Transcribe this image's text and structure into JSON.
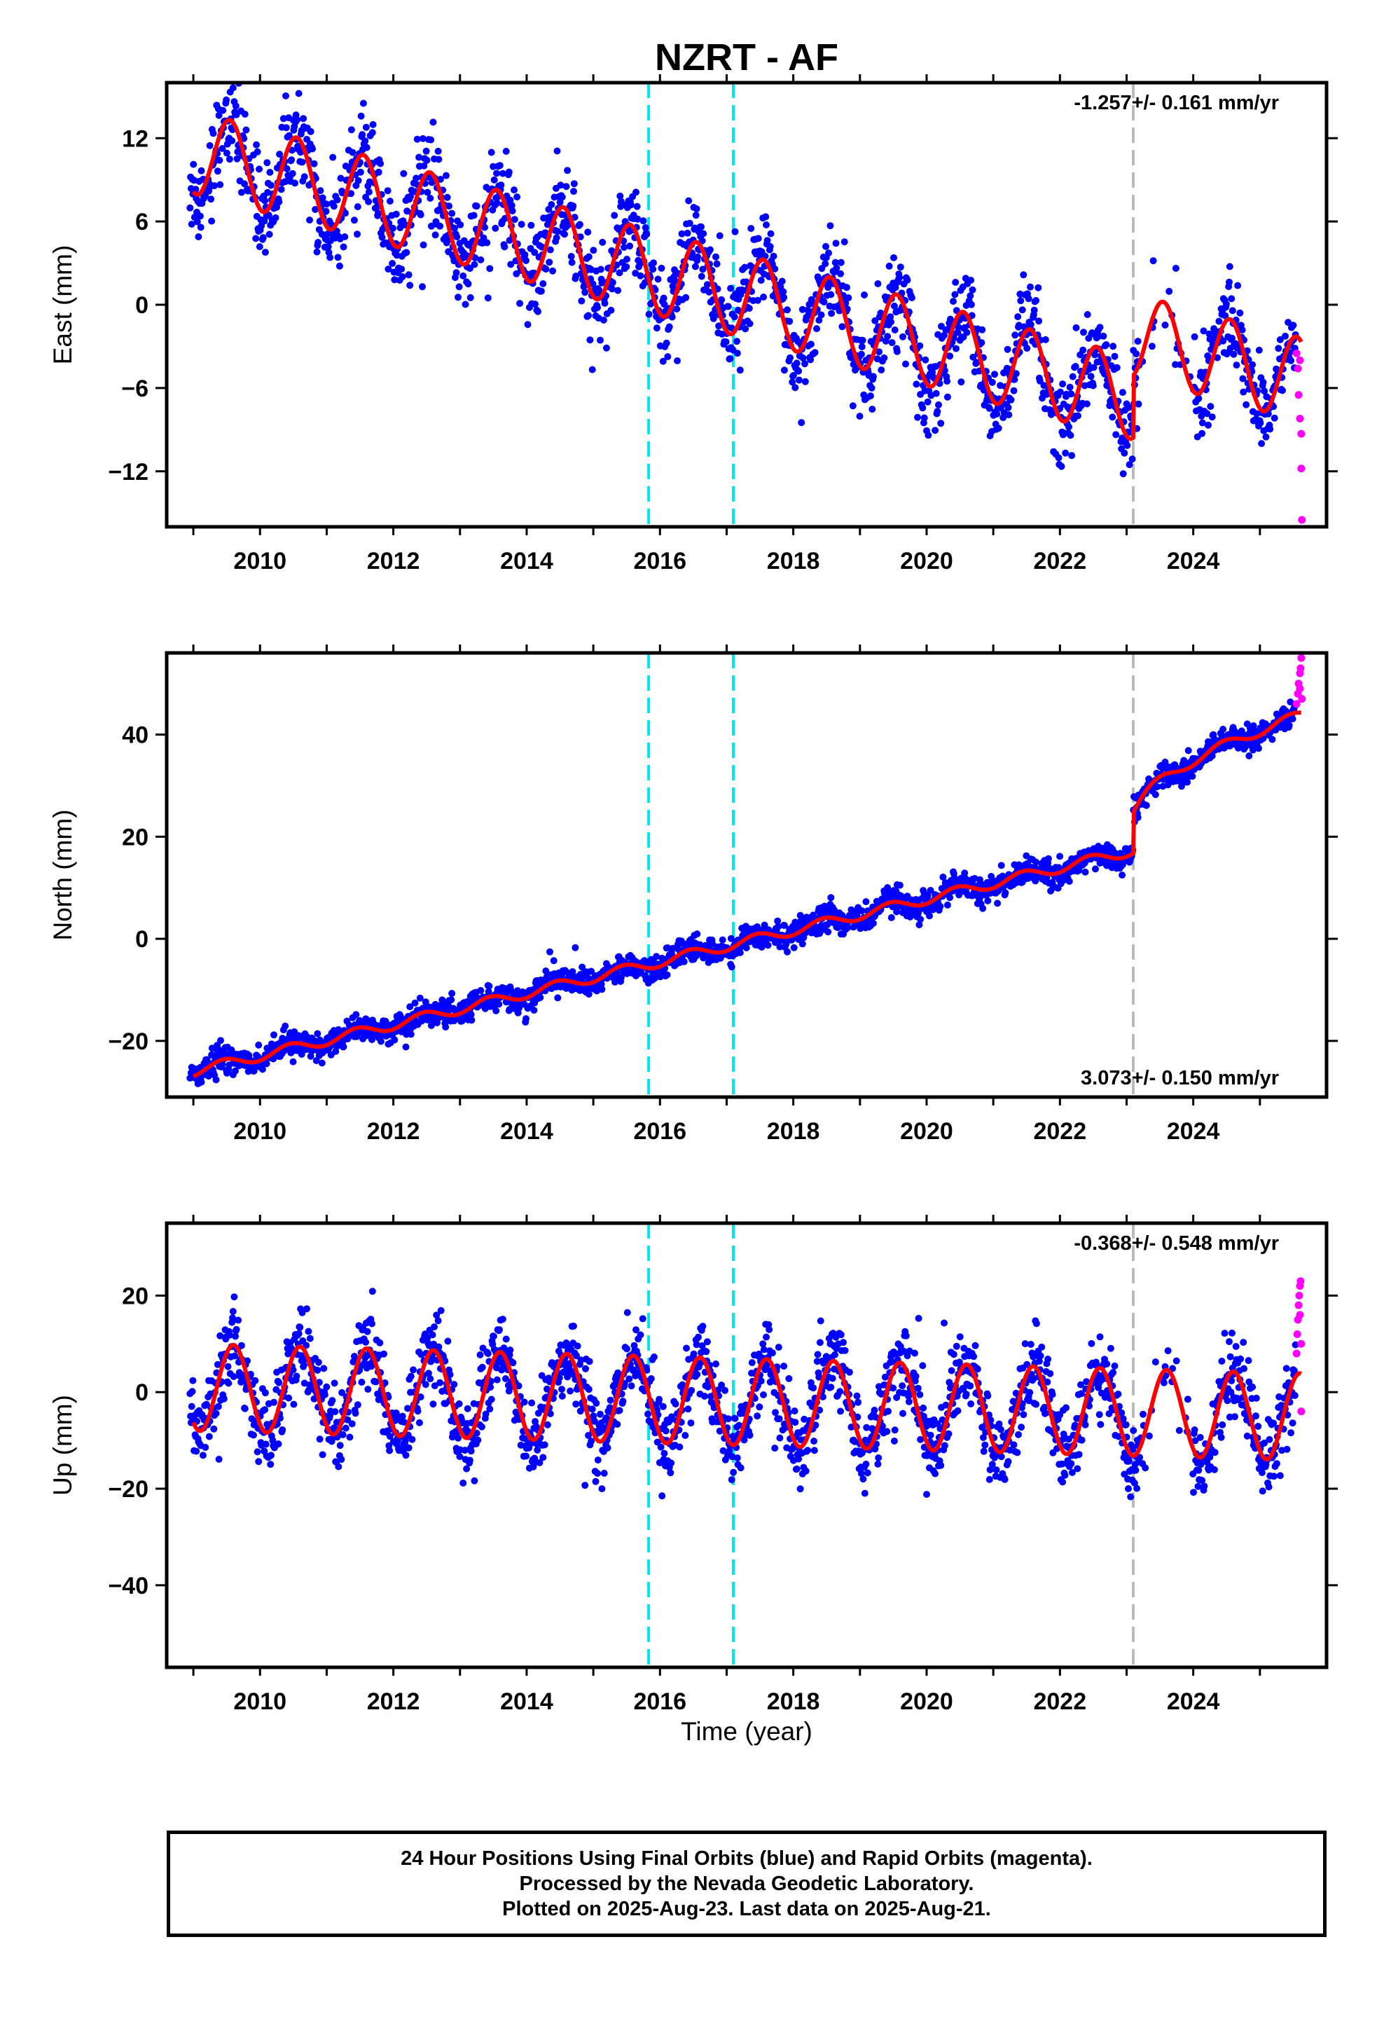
{
  "chart_data": {
    "type": "scatter",
    "title": "NZRT - AF",
    "xlabel": "Time (year)",
    "x_ticks": [
      2010,
      2012,
      2014,
      2016,
      2018,
      2020,
      2022,
      2024
    ],
    "xlim": [
      2008.6,
      2026.0
    ],
    "events": [
      {
        "year": 2015.83,
        "color": "#00e5ee"
      },
      {
        "year": 2017.1,
        "color": "#00e5ee"
      },
      {
        "year": 2023.1,
        "color": "#bbbbbb"
      }
    ],
    "colors": {
      "final_orbits": "#0000ff",
      "rapid_orbits": "#ff00ff",
      "model": "#ff0000"
    },
    "panels": [
      {
        "name": "east",
        "ylabel": "East (mm)",
        "rate_text": "-1.257+/- 0.161 mm/yr",
        "rate_position": "top-right",
        "ylim": [
          -16,
          16
        ],
        "y_ticks": [
          12,
          6,
          0,
          -6,
          -12
        ],
        "model": {
          "trend_offset": 11.0,
          "trend_per_year": -1.257,
          "annual_amplitude": 3.0,
          "phase_year": 0.3,
          "step_at_2023_1": 4.5
        },
        "rapid_points": [
          [
            2025.55,
            -3.5
          ],
          [
            2025.57,
            -4.6
          ],
          [
            2025.58,
            -6.5
          ],
          [
            2025.6,
            -8.2
          ],
          [
            2025.62,
            -9.3
          ],
          [
            2025.62,
            -11.8
          ],
          [
            2025.63,
            -15.5
          ],
          [
            2025.6,
            -4.0
          ]
        ]
      },
      {
        "name": "north",
        "ylabel": "North (mm)",
        "rate_text": "3.073+/- 0.150 mm/yr",
        "rate_position": "bottom-right",
        "ylim": [
          -31,
          56
        ],
        "y_ticks": [
          40,
          20,
          0,
          -20
        ],
        "model": {
          "trend_offset": -26.0,
          "trend_per_year": 3.073,
          "annual_amplitude": 1.0,
          "phase_year": 0.2,
          "step_at_2023_1": 8.0,
          "post_step_log": 10.0
        },
        "rapid_points": [
          [
            2025.55,
            46
          ],
          [
            2025.57,
            48
          ],
          [
            2025.58,
            50
          ],
          [
            2025.6,
            52
          ],
          [
            2025.61,
            53
          ],
          [
            2025.62,
            55
          ],
          [
            2025.63,
            47
          ],
          [
            2025.6,
            49
          ]
        ]
      },
      {
        "name": "up",
        "ylabel": "Up (mm)",
        "rate_text": "-0.368+/- 0.548 mm/yr",
        "rate_position": "top-right",
        "ylim": [
          -57,
          35
        ],
        "y_ticks": [
          20,
          0,
          -20,
          -40
        ],
        "model": {
          "trend_offset": 1.0,
          "trend_per_year": -0.368,
          "annual_amplitude": 9.0,
          "phase_year": 0.35,
          "step_at_2023_1": 0
        },
        "rapid_points": [
          [
            2025.55,
            8
          ],
          [
            2025.56,
            12
          ],
          [
            2025.57,
            15
          ],
          [
            2025.58,
            18
          ],
          [
            2025.59,
            20
          ],
          [
            2025.6,
            22
          ],
          [
            2025.61,
            23
          ],
          [
            2025.62,
            10
          ],
          [
            2025.62,
            -4
          ],
          [
            2025.6,
            16
          ]
        ]
      }
    ]
  },
  "footer": {
    "line1": "24 Hour Positions Using Final Orbits (blue) and Rapid Orbits (magenta).",
    "line2": "Processed by the Nevada Geodetic Laboratory.",
    "line3": "Plotted on 2025-Aug-23. Last data on 2025-Aug-21."
  }
}
